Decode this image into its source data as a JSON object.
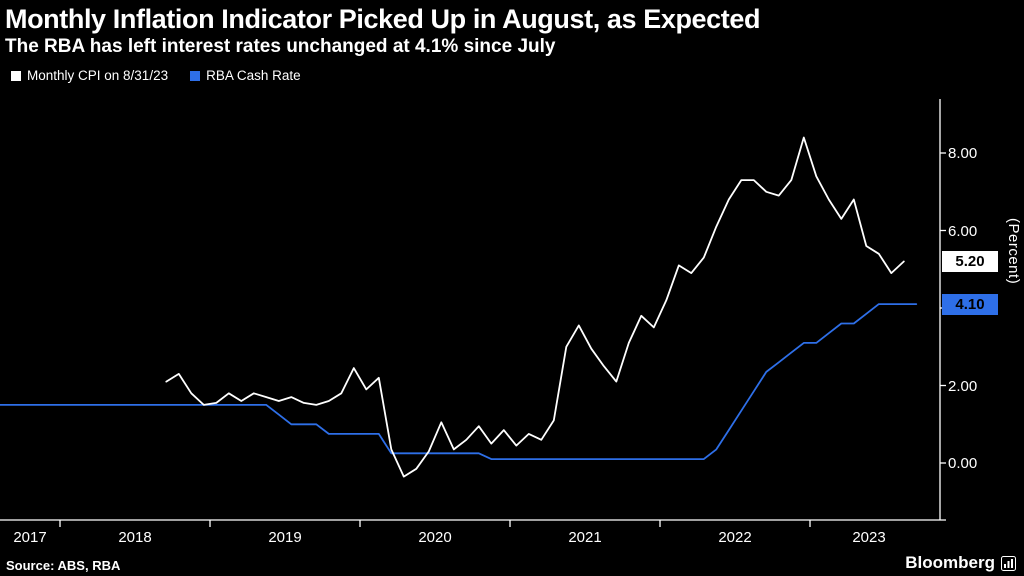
{
  "header": {
    "title": "Monthly Inflation Indicator Picked Up in August, as Expected",
    "subtitle": "The RBA has left interest rates unchanged at 4.1% since July"
  },
  "footer": {
    "source": "Source: ABS, RBA",
    "brand": "Bloomberg"
  },
  "axis": {
    "unit_label": "(Percent)"
  },
  "chart_data": {
    "type": "line",
    "title": "Monthly Inflation Indicator Picked Up in August, as Expected",
    "subtitle": "The RBA has left interest rates unchanged at 4.1% since July",
    "xlabel": "",
    "ylabel": "(Percent)",
    "ylim": [
      -1.5,
      9.4
    ],
    "x_range": [
      "2017-07",
      "2023-10"
    ],
    "grid": false,
    "legend_position": "top-left",
    "background": "#000000",
    "x_ticks": [
      "2017",
      "2018",
      "2019",
      "2020",
      "2021",
      "2022",
      "2023"
    ],
    "y_ticks": [
      {
        "label": "0.00",
        "value": 0
      },
      {
        "label": "2.00",
        "value": 2
      },
      {
        "label": "4.00",
        "value": 4
      },
      {
        "label": "6.00",
        "value": 6
      },
      {
        "label": "8.00",
        "value": 8
      }
    ],
    "value_labels": [
      {
        "label": "5.20",
        "series": 0,
        "value": 5.2,
        "bg": "#ffffff",
        "fg": "#000000"
      },
      {
        "label": "4.10",
        "series": 1,
        "value": 4.1,
        "bg": "#2e6fe8",
        "fg": "#000000"
      }
    ],
    "series": [
      {
        "name": "Monthly CPI on 8/31/23",
        "color": "#ffffff",
        "points": [
          [
            "2018-09",
            2.1
          ],
          [
            "2018-10",
            2.3
          ],
          [
            "2018-11",
            1.8
          ],
          [
            "2018-12",
            1.5
          ],
          [
            "2019-01",
            1.55
          ],
          [
            "2019-02",
            1.8
          ],
          [
            "2019-03",
            1.6
          ],
          [
            "2019-04",
            1.8
          ],
          [
            "2019-05",
            1.7
          ],
          [
            "2019-06",
            1.6
          ],
          [
            "2019-07",
            1.7
          ],
          [
            "2019-08",
            1.55
          ],
          [
            "2019-09",
            1.5
          ],
          [
            "2019-10",
            1.6
          ],
          [
            "2019-11",
            1.8
          ],
          [
            "2019-12",
            2.45
          ],
          [
            "2020-01",
            1.9
          ],
          [
            "2020-02",
            2.2
          ],
          [
            "2020-03",
            0.35
          ],
          [
            "2020-04",
            -0.35
          ],
          [
            "2020-05",
            -0.15
          ],
          [
            "2020-06",
            0.3
          ],
          [
            "2020-07",
            1.05
          ],
          [
            "2020-08",
            0.35
          ],
          [
            "2020-09",
            0.6
          ],
          [
            "2020-10",
            0.95
          ],
          [
            "2020-11",
            0.5
          ],
          [
            "2020-12",
            0.85
          ],
          [
            "2021-01",
            0.45
          ],
          [
            "2021-02",
            0.75
          ],
          [
            "2021-03",
            0.6
          ],
          [
            "2021-04",
            1.1
          ],
          [
            "2021-05",
            3.0
          ],
          [
            "2021-06",
            3.55
          ],
          [
            "2021-07",
            2.95
          ],
          [
            "2021-08",
            2.5
          ],
          [
            "2021-09",
            2.1
          ],
          [
            "2021-10",
            3.1
          ],
          [
            "2021-11",
            3.8
          ],
          [
            "2021-12",
            3.5
          ],
          [
            "2022-01",
            4.2
          ],
          [
            "2022-02",
            5.1
          ],
          [
            "2022-03",
            4.9
          ],
          [
            "2022-04",
            5.3
          ],
          [
            "2022-05",
            6.1
          ],
          [
            "2022-06",
            6.8
          ],
          [
            "2022-07",
            7.3
          ],
          [
            "2022-08",
            7.3
          ],
          [
            "2022-09",
            7.0
          ],
          [
            "2022-10",
            6.9
          ],
          [
            "2022-11",
            7.3
          ],
          [
            "2022-12",
            8.4
          ],
          [
            "2023-01",
            7.4
          ],
          [
            "2023-02",
            6.8
          ],
          [
            "2023-03",
            6.3
          ],
          [
            "2023-04",
            6.8
          ],
          [
            "2023-05",
            5.6
          ],
          [
            "2023-06",
            5.4
          ],
          [
            "2023-07",
            4.9
          ],
          [
            "2023-08",
            5.2
          ]
        ]
      },
      {
        "name": "RBA Cash Rate",
        "color": "#2e6fe8",
        "points": [
          [
            "2017-07",
            1.5
          ],
          [
            "2019-05",
            1.5
          ],
          [
            "2019-06",
            1.25
          ],
          [
            "2019-07",
            1.0
          ],
          [
            "2019-09",
            1.0
          ],
          [
            "2019-10",
            0.75
          ],
          [
            "2020-02",
            0.75
          ],
          [
            "2020-03",
            0.25
          ],
          [
            "2020-10",
            0.25
          ],
          [
            "2020-11",
            0.1
          ],
          [
            "2022-04",
            0.1
          ],
          [
            "2022-05",
            0.35
          ],
          [
            "2022-06",
            0.85
          ],
          [
            "2022-07",
            1.35
          ],
          [
            "2022-08",
            1.85
          ],
          [
            "2022-09",
            2.35
          ],
          [
            "2022-10",
            2.6
          ],
          [
            "2022-11",
            2.85
          ],
          [
            "2022-12",
            3.1
          ],
          [
            "2023-01",
            3.1
          ],
          [
            "2023-02",
            3.35
          ],
          [
            "2023-03",
            3.6
          ],
          [
            "2023-04",
            3.6
          ],
          [
            "2023-05",
            3.85
          ],
          [
            "2023-06",
            4.1
          ],
          [
            "2023-09",
            4.1
          ]
        ]
      }
    ]
  }
}
